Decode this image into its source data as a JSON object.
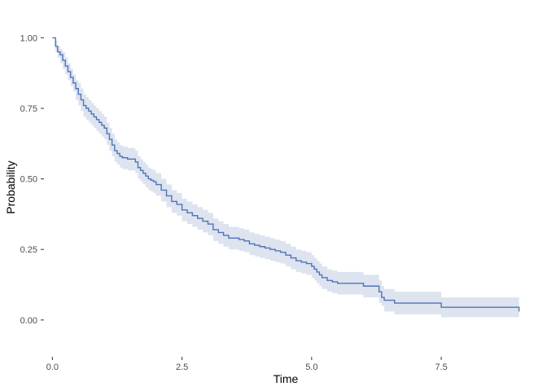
{
  "chart_data": {
    "type": "line",
    "subtype": "step-with-confidence-band",
    "title": "",
    "xlabel": "Time",
    "ylabel": "Probability",
    "xlim": [
      -0.1,
      9.1
    ],
    "ylim": [
      -0.09,
      1.03
    ],
    "x_ticks": [
      0,
      2.5,
      5,
      7.5
    ],
    "x_tick_labels": [
      "0.0",
      "2.5",
      "5.0",
      "7.5"
    ],
    "y_ticks": [
      0,
      0.25,
      0.5,
      0.75,
      1
    ],
    "y_tick_labels": [
      "0.00",
      "0.25",
      "0.50",
      "0.75",
      "1.00"
    ],
    "grid": false,
    "colors": {
      "line": "#4f74b8",
      "band": "#dde3ef"
    },
    "series": [
      {
        "x": [
          0,
          0.06,
          0.1,
          0.15,
          0.2,
          0.25,
          0.3,
          0.35,
          0.4,
          0.45,
          0.5,
          0.55,
          0.6,
          0.65,
          0.7,
          0.75,
          0.8,
          0.85,
          0.9,
          0.95,
          1.0,
          1.05,
          1.1,
          1.15,
          1.2,
          1.25,
          1.3,
          1.35,
          1.45,
          1.6,
          1.65,
          1.7,
          1.75,
          1.8,
          1.85,
          1.9,
          1.95,
          2.0,
          2.1,
          2.2,
          2.3,
          2.4,
          2.5,
          2.6,
          2.7,
          2.8,
          2.9,
          3.0,
          3.1,
          3.2,
          3.3,
          3.4,
          3.6,
          3.7,
          3.8,
          3.9,
          4.0,
          4.1,
          4.2,
          4.3,
          4.4,
          4.5,
          4.6,
          4.7,
          4.8,
          4.9,
          5.0,
          5.05,
          5.1,
          5.15,
          5.2,
          5.3,
          5.4,
          5.5,
          5.6,
          6.0,
          6.2,
          6.3,
          6.35,
          6.4,
          6.5,
          6.6,
          6.7,
          7.5,
          9.0
        ],
        "values": [
          1.0,
          0.97,
          0.95,
          0.94,
          0.92,
          0.9,
          0.88,
          0.86,
          0.84,
          0.82,
          0.8,
          0.78,
          0.76,
          0.75,
          0.74,
          0.73,
          0.72,
          0.71,
          0.7,
          0.69,
          0.68,
          0.66,
          0.64,
          0.62,
          0.6,
          0.59,
          0.58,
          0.575,
          0.57,
          0.56,
          0.54,
          0.53,
          0.52,
          0.51,
          0.5,
          0.495,
          0.49,
          0.48,
          0.46,
          0.44,
          0.42,
          0.41,
          0.39,
          0.38,
          0.37,
          0.36,
          0.35,
          0.34,
          0.32,
          0.31,
          0.3,
          0.29,
          0.285,
          0.28,
          0.27,
          0.265,
          0.26,
          0.255,
          0.25,
          0.245,
          0.24,
          0.23,
          0.22,
          0.21,
          0.205,
          0.2,
          0.19,
          0.18,
          0.17,
          0.16,
          0.15,
          0.14,
          0.135,
          0.13,
          0.13,
          0.12,
          0.12,
          0.1,
          0.08,
          0.07,
          0.07,
          0.06,
          0.06,
          0.045,
          0.03
        ],
        "lower": [
          1.0,
          0.95,
          0.93,
          0.91,
          0.89,
          0.87,
          0.85,
          0.83,
          0.81,
          0.78,
          0.76,
          0.74,
          0.72,
          0.71,
          0.7,
          0.69,
          0.68,
          0.67,
          0.66,
          0.65,
          0.64,
          0.62,
          0.6,
          0.58,
          0.56,
          0.55,
          0.54,
          0.535,
          0.53,
          0.52,
          0.5,
          0.49,
          0.48,
          0.47,
          0.46,
          0.455,
          0.45,
          0.44,
          0.42,
          0.4,
          0.38,
          0.37,
          0.35,
          0.34,
          0.33,
          0.32,
          0.31,
          0.3,
          0.28,
          0.27,
          0.26,
          0.25,
          0.245,
          0.24,
          0.23,
          0.225,
          0.22,
          0.215,
          0.21,
          0.205,
          0.2,
          0.19,
          0.18,
          0.17,
          0.165,
          0.16,
          0.15,
          0.14,
          0.13,
          0.12,
          0.11,
          0.1,
          0.095,
          0.09,
          0.09,
          0.08,
          0.08,
          0.06,
          0.05,
          0.03,
          0.03,
          0.02,
          0.02,
          0.01,
          0.0
        ],
        "upper": [
          1.0,
          0.99,
          0.97,
          0.96,
          0.95,
          0.93,
          0.91,
          0.89,
          0.87,
          0.85,
          0.84,
          0.82,
          0.8,
          0.79,
          0.78,
          0.77,
          0.76,
          0.75,
          0.74,
          0.73,
          0.72,
          0.7,
          0.68,
          0.66,
          0.64,
          0.63,
          0.62,
          0.615,
          0.61,
          0.6,
          0.58,
          0.57,
          0.56,
          0.55,
          0.54,
          0.535,
          0.53,
          0.52,
          0.5,
          0.48,
          0.46,
          0.45,
          0.43,
          0.42,
          0.41,
          0.4,
          0.39,
          0.38,
          0.36,
          0.35,
          0.34,
          0.33,
          0.325,
          0.32,
          0.31,
          0.305,
          0.3,
          0.295,
          0.29,
          0.285,
          0.28,
          0.27,
          0.26,
          0.25,
          0.245,
          0.24,
          0.23,
          0.22,
          0.21,
          0.2,
          0.19,
          0.18,
          0.175,
          0.17,
          0.17,
          0.16,
          0.16,
          0.14,
          0.12,
          0.11,
          0.11,
          0.1,
          0.1,
          0.08,
          0.07
        ]
      }
    ]
  }
}
